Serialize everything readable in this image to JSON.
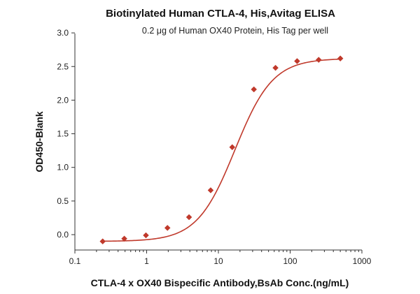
{
  "chart_data": {
    "type": "scatter",
    "title": "Biotinylated Human CTLA-4, His,Avitag  ELISA",
    "subtitle": "0.2 μg of Human OX40 Protein, His Tag per well",
    "xlabel": "CTLA-4 x OX40 Bispecific Antibody,BsAb Conc.(ng/mL)",
    "ylabel": "OD450-Blank",
    "x_scale": "log",
    "xlim": [
      0.1,
      1000
    ],
    "ylim": [
      -0.1,
      3.0
    ],
    "x_ticks": [
      "0.1",
      "1",
      "10",
      "100",
      "1000"
    ],
    "y_ticks": [
      "0.0",
      "0.5",
      "1.0",
      "1.5",
      "2.0",
      "2.5",
      "3.0"
    ],
    "grid": false,
    "color": "#c0392b",
    "fit_curve": "4PL sigmoid",
    "series": [
      {
        "x": [
          0.244,
          0.488,
          0.977,
          1.95,
          3.9,
          7.8,
          15.6,
          31.25,
          62.5,
          125,
          250,
          500
        ],
        "y": [
          -0.1,
          -0.06,
          -0.01,
          0.1,
          0.26,
          0.66,
          1.3,
          2.16,
          2.48,
          2.58,
          2.6,
          2.62
        ]
      }
    ]
  }
}
